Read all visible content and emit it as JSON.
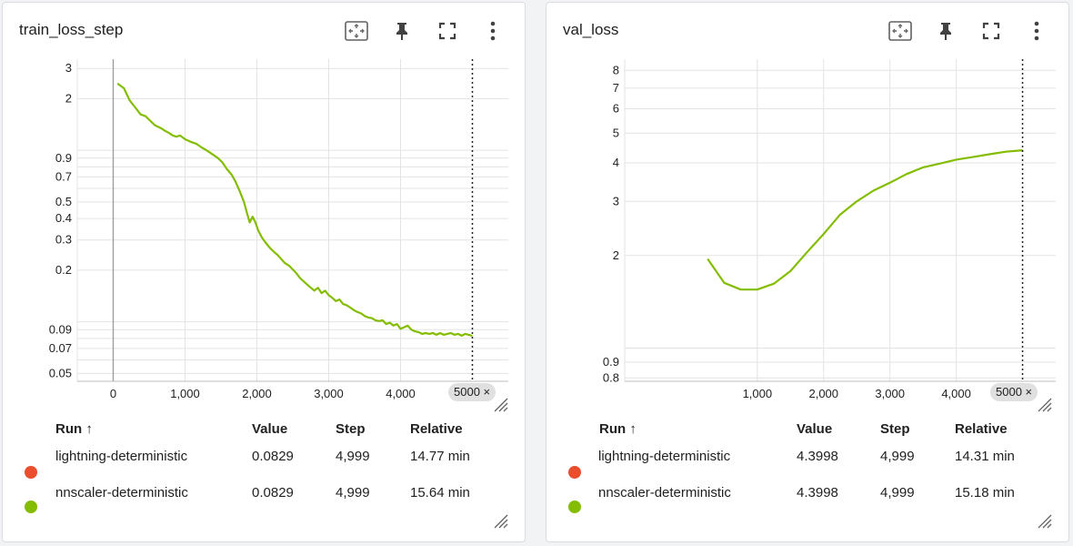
{
  "cards": [
    {
      "title": "train_loss_step",
      "chip": "5000 ×",
      "table": {
        "headers": {
          "run": "Run ↑",
          "value": "Value",
          "step": "Step",
          "relative": "Relative"
        },
        "rows": [
          {
            "color": "#ea4e2c",
            "run": "lightning-deterministic",
            "value": "0.0829",
            "step": "4,999",
            "relative": "14.77 min"
          },
          {
            "color": "#84bd00",
            "run": "nnscaler-deterministic",
            "value": "0.0829",
            "step": "4,999",
            "relative": "15.64 min"
          }
        ]
      }
    },
    {
      "title": "val_loss",
      "chip": "5000 ×",
      "table": {
        "headers": {
          "run": "Run ↑",
          "value": "Value",
          "step": "Step",
          "relative": "Relative"
        },
        "rows": [
          {
            "color": "#ea4e2c",
            "run": "lightning-deterministic",
            "value": "4.3998",
            "step": "4,999",
            "relative": "14.31 min"
          },
          {
            "color": "#84bd00",
            "run": "nnscaler-deterministic",
            "value": "4.3998",
            "step": "4,999",
            "relative": "15.18 min"
          }
        ]
      }
    }
  ],
  "chart_data": [
    {
      "type": "line",
      "title": "train_loss_step",
      "xlabel": "",
      "ylabel": "",
      "y_scale": "log",
      "xlim": [
        -500,
        5500
      ],
      "ylim": [
        0.045,
        3.4
      ],
      "x_ticks": [
        0,
        1000,
        2000,
        3000,
        4000
      ],
      "x_tick_labels": [
        "0",
        "1,000",
        "2,000",
        "3,000",
        "4,000"
      ],
      "y_ticks": [
        3,
        2,
        0.9,
        0.7,
        0.5,
        0.4,
        0.3,
        0.2,
        0.09,
        0.07,
        0.05
      ],
      "y_tick_labels": [
        "3",
        "2",
        "0.9",
        "0.7",
        "0.5",
        "0.4",
        "0.3",
        "0.2",
        "0.09",
        "0.07",
        "0.05"
      ],
      "y_grid": [
        3,
        2,
        1,
        0.9,
        0.8,
        0.7,
        0.6,
        0.5,
        0.4,
        0.3,
        0.2,
        0.1,
        0.09,
        0.08,
        0.07,
        0.06,
        0.05
      ],
      "grid": true,
      "cursor_step": 5000,
      "series": [
        {
          "color": "#84bd00",
          "x": [
            60,
            150,
            230,
            320,
            380,
            450,
            520,
            580,
            660,
            720,
            780,
            830,
            880,
            930,
            1000,
            1080,
            1160,
            1230,
            1300,
            1380,
            1460,
            1520,
            1580,
            1650,
            1700,
            1760,
            1820,
            1870,
            1900,
            1940,
            1980,
            2020,
            2070,
            2120,
            2180,
            2240,
            2290,
            2340,
            2390,
            2450,
            2500,
            2550,
            2600,
            2650,
            2700,
            2750,
            2800,
            2850,
            2900,
            2950,
            3000,
            3050,
            3100,
            3150,
            3200,
            3250,
            3300,
            3350,
            3400,
            3450,
            3500,
            3550,
            3600,
            3650,
            3700,
            3750,
            3800,
            3850,
            3900,
            3950,
            4000,
            4050,
            4100,
            4150,
            4200,
            4250,
            4300,
            4350,
            4400,
            4450,
            4500,
            4550,
            4600,
            4650,
            4700,
            4750,
            4800,
            4850,
            4900,
            4950,
            4999
          ],
          "y": [
            2.45,
            2.3,
            1.95,
            1.75,
            1.62,
            1.58,
            1.48,
            1.4,
            1.35,
            1.3,
            1.26,
            1.22,
            1.2,
            1.22,
            1.16,
            1.12,
            1.09,
            1.04,
            1.0,
            0.95,
            0.9,
            0.85,
            0.78,
            0.72,
            0.66,
            0.58,
            0.5,
            0.42,
            0.38,
            0.41,
            0.38,
            0.34,
            0.31,
            0.29,
            0.27,
            0.255,
            0.245,
            0.232,
            0.22,
            0.212,
            0.202,
            0.192,
            0.18,
            0.172,
            0.165,
            0.158,
            0.152,
            0.158,
            0.147,
            0.152,
            0.143,
            0.138,
            0.132,
            0.135,
            0.127,
            0.125,
            0.121,
            0.117,
            0.114,
            0.112,
            0.108,
            0.106,
            0.105,
            0.102,
            0.101,
            0.102,
            0.097,
            0.099,
            0.095,
            0.097,
            0.091,
            0.093,
            0.095,
            0.09,
            0.088,
            0.087,
            0.085,
            0.086,
            0.085,
            0.086,
            0.084,
            0.086,
            0.084,
            0.085,
            0.086,
            0.084,
            0.085,
            0.083,
            0.085,
            0.084,
            0.0829
          ]
        }
      ]
    },
    {
      "type": "line",
      "title": "val_loss",
      "xlabel": "",
      "ylabel": "",
      "y_scale": "log",
      "xlim": [
        -1000,
        5500
      ],
      "ylim": [
        0.78,
        8.7
      ],
      "x_ticks": [
        1000,
        2000,
        3000,
        4000
      ],
      "x_tick_labels": [
        "1,000",
        "2,000",
        "3,000",
        "4,000"
      ],
      "y_ticks": [
        8,
        7,
        6,
        5,
        4,
        3,
        2,
        0.9,
        0.8
      ],
      "y_tick_labels": [
        "8",
        "7",
        "6",
        "5",
        "4",
        "3",
        "2",
        "0.9",
        "0.8"
      ],
      "y_grid": [
        8,
        7,
        6,
        5,
        4,
        3,
        2,
        1,
        0.9,
        0.8
      ],
      "grid": true,
      "cursor_step": 5000,
      "series": [
        {
          "color": "#84bd00",
          "x": [
            250,
            500,
            750,
            1000,
            1250,
            1500,
            1750,
            2000,
            2250,
            2500,
            2750,
            3000,
            3250,
            3500,
            3750,
            4000,
            4250,
            4500,
            4750,
            4999
          ],
          "y": [
            1.95,
            1.63,
            1.55,
            1.55,
            1.62,
            1.78,
            2.05,
            2.35,
            2.72,
            3.0,
            3.25,
            3.45,
            3.68,
            3.87,
            3.98,
            4.1,
            4.18,
            4.27,
            4.35,
            4.3998
          ]
        }
      ]
    }
  ]
}
